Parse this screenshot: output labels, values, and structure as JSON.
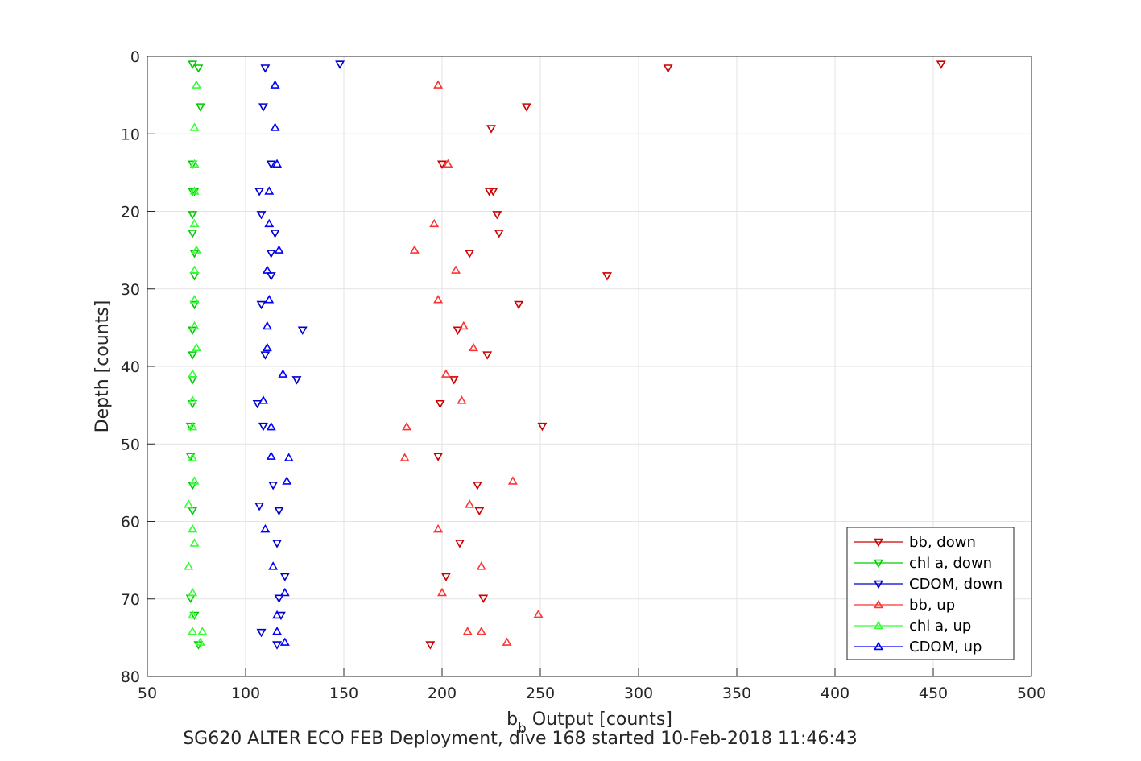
{
  "chart_data": {
    "type": "scatter",
    "title": "",
    "xlabel": {
      "base": "b",
      "subscript": "b",
      "rest": " Output [counts]"
    },
    "ylabel": "Depth [counts]",
    "footer": "SG620 ALTER ECO FEB Deployment, dive 168 started 10-Feb-2018 11:46:43",
    "xlim": [
      50,
      500
    ],
    "ylim": [
      0,
      80
    ],
    "y_reversed": true,
    "xticks": [
      50,
      100,
      150,
      200,
      250,
      300,
      350,
      400,
      450,
      500
    ],
    "yticks": [
      0,
      10,
      20,
      30,
      40,
      50,
      60,
      70,
      80
    ],
    "xtick_labels": [
      "50",
      "100",
      "150",
      "200",
      "250",
      "300",
      "350",
      "400",
      "450",
      "500"
    ],
    "ytick_labels": [
      "0",
      "10",
      "20",
      "30",
      "40",
      "50",
      "60",
      "70",
      "80"
    ],
    "grid": true,
    "legend_position": "bottom-right",
    "series": [
      {
        "name": "bb, down",
        "color": "#cc0000",
        "marker": "triangle-down",
        "points": [
          [
            454,
            1
          ],
          [
            315,
            1.5
          ],
          [
            243,
            6.5
          ],
          [
            225,
            9.3
          ],
          [
            200,
            13.9
          ],
          [
            224,
            17.4
          ],
          [
            226,
            17.4
          ],
          [
            228,
            20.4
          ],
          [
            229,
            22.8
          ],
          [
            214,
            25.4
          ],
          [
            284,
            28.3
          ],
          [
            239,
            32
          ],
          [
            208,
            35.3
          ],
          [
            223,
            38.5
          ],
          [
            206,
            41.7
          ],
          [
            199,
            44.8
          ],
          [
            251,
            47.7
          ],
          [
            198,
            51.6
          ],
          [
            218,
            55.3
          ],
          [
            219,
            58.6
          ],
          [
            209,
            62.8
          ],
          [
            202,
            67.1
          ],
          [
            221,
            69.9
          ],
          [
            194,
            75.9
          ]
        ]
      },
      {
        "name": "chl a, down",
        "color": "#00cc00",
        "marker": "triangle-down",
        "points": [
          [
            73,
            1
          ],
          [
            76,
            1.5
          ],
          [
            77,
            6.5
          ],
          [
            73,
            13.9
          ],
          [
            74,
            17.4
          ],
          [
            73,
            17.4
          ],
          [
            73,
            20.4
          ],
          [
            73,
            22.8
          ],
          [
            74,
            25.4
          ],
          [
            74,
            28.3
          ],
          [
            74,
            32
          ],
          [
            73,
            35.3
          ],
          [
            73,
            38.5
          ],
          [
            73,
            41.7
          ],
          [
            73,
            44.8
          ],
          [
            72,
            47.7
          ],
          [
            72,
            51.6
          ],
          [
            73,
            55.3
          ],
          [
            73,
            58.6
          ],
          [
            72,
            69.9
          ],
          [
            74,
            72.1
          ],
          [
            76,
            75.9
          ]
        ]
      },
      {
        "name": "CDOM, down",
        "color": "#0000cc",
        "marker": "triangle-down",
        "points": [
          [
            148,
            1
          ],
          [
            110,
            1.5
          ],
          [
            109,
            6.5
          ],
          [
            113,
            13.9
          ],
          [
            107,
            17.4
          ],
          [
            108,
            20.4
          ],
          [
            115,
            22.8
          ],
          [
            113,
            25.4
          ],
          [
            113,
            28.3
          ],
          [
            108,
            32
          ],
          [
            129,
            35.3
          ],
          [
            110,
            38.5
          ],
          [
            126,
            41.7
          ],
          [
            106,
            44.8
          ],
          [
            109,
            47.7
          ],
          [
            114,
            55.3
          ],
          [
            107,
            58
          ],
          [
            117,
            58.6
          ],
          [
            116,
            62.8
          ],
          [
            120,
            67.1
          ],
          [
            117,
            69.9
          ],
          [
            118,
            72.1
          ],
          [
            108,
            74.3
          ],
          [
            116,
            75.9
          ]
        ]
      },
      {
        "name": "bb, up",
        "color": "#ff3333",
        "marker": "triangle-up",
        "points": [
          [
            198,
            3.7
          ],
          [
            203,
            13.9
          ],
          [
            196,
            21.6
          ],
          [
            186,
            25
          ],
          [
            207,
            27.6
          ],
          [
            198,
            31.4
          ],
          [
            211,
            34.8
          ],
          [
            216,
            37.6
          ],
          [
            202,
            41
          ],
          [
            210,
            44.4
          ],
          [
            182,
            47.8
          ],
          [
            181,
            51.8
          ],
          [
            236,
            54.8
          ],
          [
            214,
            57.8
          ],
          [
            198,
            61
          ],
          [
            220,
            65.8
          ],
          [
            200,
            69.2
          ],
          [
            249,
            72
          ],
          [
            213,
            74.2
          ],
          [
            220,
            74.2
          ],
          [
            233,
            75.6
          ]
        ]
      },
      {
        "name": "chl a, up",
        "color": "#33ff33",
        "marker": "triangle-up",
        "points": [
          [
            75,
            3.7
          ],
          [
            74,
            9.2
          ],
          [
            74,
            13.9
          ],
          [
            74,
            17.4
          ],
          [
            74,
            21.6
          ],
          [
            75,
            25
          ],
          [
            74,
            27.6
          ],
          [
            74,
            31.4
          ],
          [
            74,
            34.8
          ],
          [
            75,
            37.6
          ],
          [
            73,
            41
          ],
          [
            73,
            44.4
          ],
          [
            73,
            47.8
          ],
          [
            73,
            51.8
          ],
          [
            74,
            54.8
          ],
          [
            71,
            57.8
          ],
          [
            73,
            61
          ],
          [
            74,
            62.8
          ],
          [
            71,
            65.8
          ],
          [
            73,
            69.2
          ],
          [
            73,
            72.1
          ],
          [
            78,
            74.2
          ],
          [
            73,
            74.2
          ],
          [
            77,
            75.6
          ]
        ]
      },
      {
        "name": "CDOM, up",
        "color": "#0000ff",
        "marker": "triangle-up",
        "points": [
          [
            115,
            3.7
          ],
          [
            115,
            9.2
          ],
          [
            116,
            13.9
          ],
          [
            112,
            17.4
          ],
          [
            112,
            21.6
          ],
          [
            117,
            25
          ],
          [
            111,
            27.6
          ],
          [
            112,
            31.4
          ],
          [
            111,
            34.8
          ],
          [
            111,
            37.6
          ],
          [
            119,
            41
          ],
          [
            109,
            44.4
          ],
          [
            113,
            47.8
          ],
          [
            122,
            51.8
          ],
          [
            121,
            54.8
          ],
          [
            110,
            61
          ],
          [
            114,
            65.8
          ],
          [
            120,
            69.2
          ],
          [
            116,
            72.1
          ],
          [
            116,
            74.2
          ],
          [
            120,
            75.6
          ],
          [
            113,
            51.6
          ]
        ]
      }
    ]
  }
}
